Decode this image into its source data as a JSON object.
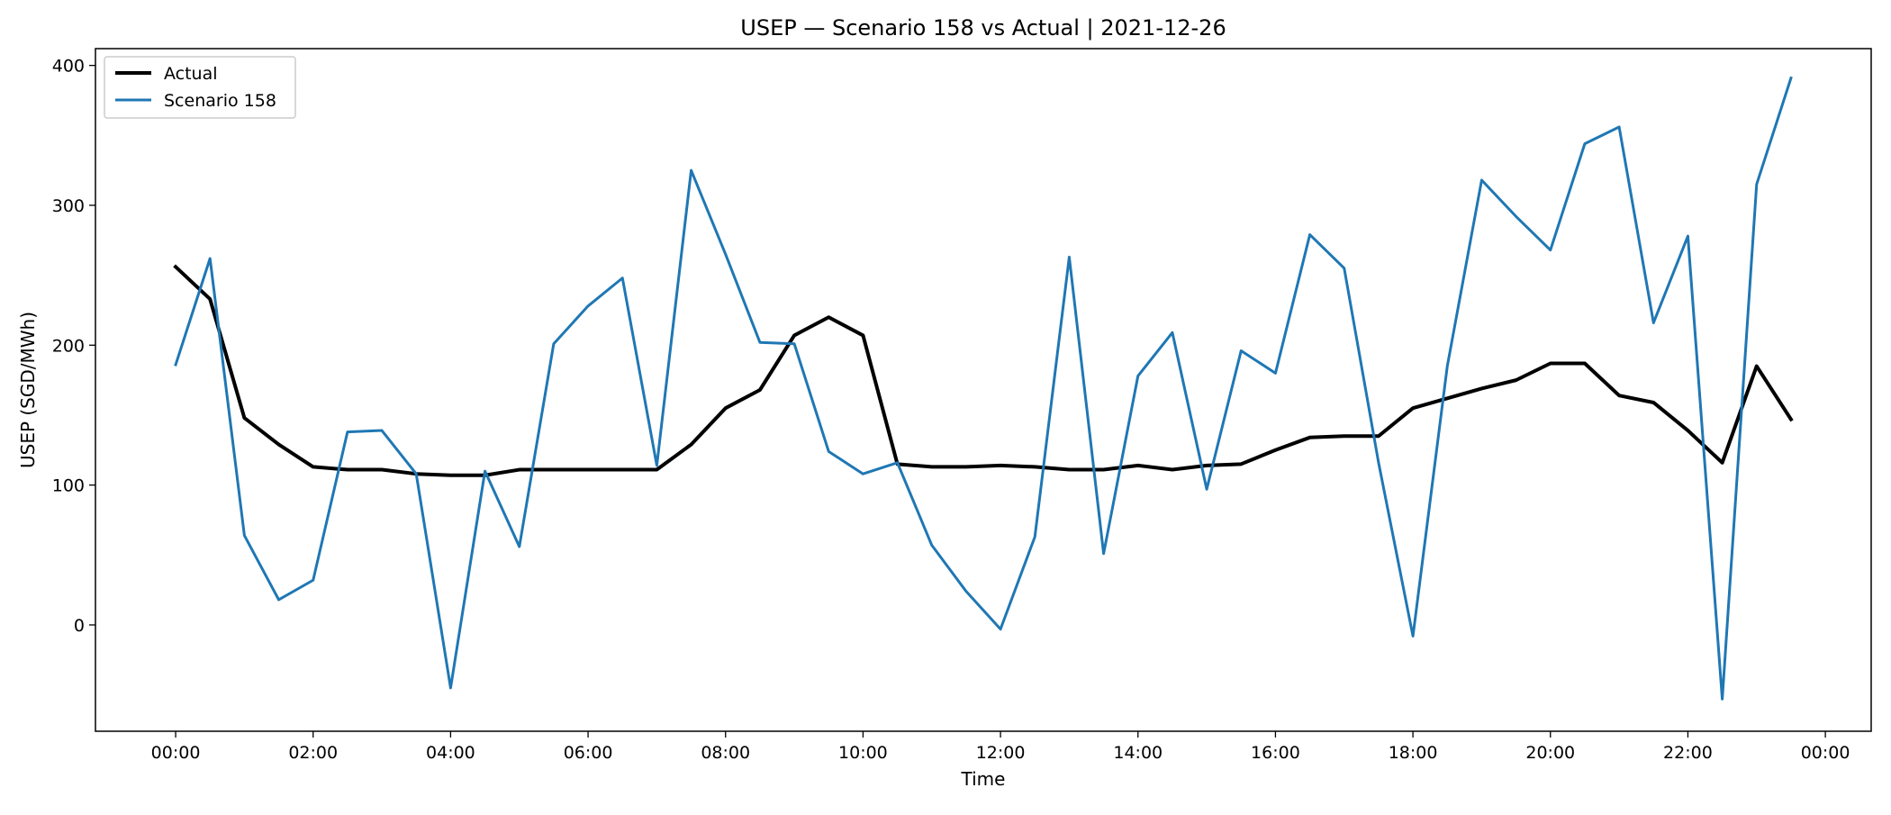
{
  "chart_data": {
    "type": "line",
    "title": "USEP — Scenario 158 vs Actual | 2021-12-26",
    "xlabel": "Time",
    "ylabel": "USEP (SGD/MWh)",
    "x_ticks": [
      "00:00",
      "02:00",
      "04:00",
      "06:00",
      "08:00",
      "10:00",
      "12:00",
      "14:00",
      "16:00",
      "18:00",
      "20:00",
      "22:00",
      "00:00"
    ],
    "y_ticks": [
      0,
      100,
      200,
      300,
      400
    ],
    "xlim": [
      "2021-12-25 22:50",
      "2021-12-27 00:40"
    ],
    "ylim": [
      -76,
      412
    ],
    "grid": false,
    "legend_position": "upper-left",
    "x": [
      "00:00",
      "00:30",
      "01:00",
      "01:30",
      "02:00",
      "02:30",
      "03:00",
      "03:30",
      "04:00",
      "04:30",
      "05:00",
      "05:30",
      "06:00",
      "06:30",
      "07:00",
      "07:30",
      "08:00",
      "08:30",
      "09:00",
      "09:30",
      "10:00",
      "10:30",
      "11:00",
      "11:30",
      "12:00",
      "12:30",
      "13:00",
      "13:30",
      "14:00",
      "14:30",
      "15:00",
      "15:30",
      "16:00",
      "16:30",
      "17:00",
      "17:30",
      "18:00",
      "18:30",
      "19:00",
      "19:30",
      "20:00",
      "20:30",
      "21:00",
      "21:30",
      "22:00",
      "22:30",
      "23:00",
      "23:30"
    ],
    "series": [
      {
        "name": "Actual",
        "color": "#000000",
        "values": [
          256,
          233,
          148,
          129,
          113,
          111,
          111,
          108,
          107,
          107,
          111,
          111,
          111,
          111,
          111,
          129,
          155,
          168,
          207,
          220,
          207,
          115,
          113,
          113,
          114,
          113,
          111,
          111,
          114,
          111,
          114,
          115,
          125,
          134,
          135,
          135,
          155,
          162,
          169,
          175,
          187,
          187,
          164,
          159,
          139,
          116,
          185,
          147
        ]
      },
      {
        "name": "Scenario 158",
        "color": "#1f77b4",
        "values": [
          186,
          262,
          64,
          18,
          32,
          138,
          139,
          108,
          -45,
          110,
          56,
          201,
          228,
          248,
          114,
          325,
          265,
          202,
          201,
          124,
          108,
          116,
          57,
          24,
          -3,
          63,
          263,
          51,
          178,
          209,
          97,
          196,
          180,
          279,
          255,
          116,
          -8,
          185,
          318,
          292,
          268,
          344,
          356,
          216,
          278,
          -53,
          315,
          391
        ]
      }
    ]
  }
}
